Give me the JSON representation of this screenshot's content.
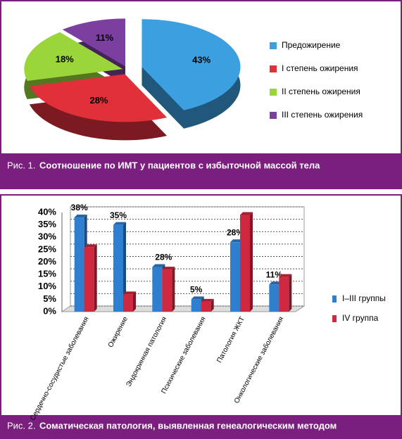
{
  "chart_data": [
    {
      "type": "pie",
      "caption_label": "Рис. 1.",
      "title": "Соотношение по ИМТ у пациентов с избыточной массой тела",
      "categories": [
        "Предожирение",
        "I степень ожирения",
        "II степень ожирения",
        "III степень ожирения"
      ],
      "values": [
        43,
        28,
        18,
        11
      ],
      "value_labels": [
        "43%",
        "28%",
        "18%",
        "11%"
      ],
      "colors": [
        "#3b9fe0",
        "#e0303a",
        "#9ad63a",
        "#7b3fa0"
      ]
    },
    {
      "type": "bar",
      "caption_label": "Рис. 2.",
      "title": "Соматическая патология, выявленная генеалогическим методом",
      "categories": [
        "Сердечно-сосудистые заболевания",
        "Ожирение",
        "Эндокринная патология",
        "Психические заболевания",
        "Патология ЖКТ",
        "Онкологические заболевания"
      ],
      "series": [
        {
          "name": "I–III группы",
          "color": "#2f7fd0",
          "values": [
            38,
            35,
            18,
            5,
            28,
            11
          ],
          "value_labels": [
            "38%",
            "35%",
            null,
            "5%",
            "28%",
            "11%"
          ]
        },
        {
          "name": "IV группа",
          "color": "#d02840",
          "values": [
            26,
            7,
            17,
            4,
            39,
            14
          ]
        }
      ],
      "annotations": [
        "28%"
      ],
      "ylim": [
        0,
        40
      ],
      "yticks": [
        {
          "value": 0,
          "label": "0%"
        },
        {
          "value": 5,
          "label": "5%"
        },
        {
          "value": 10,
          "label": "10%"
        },
        {
          "value": 15,
          "label": "15%"
        },
        {
          "value": 20,
          "label": "20%"
        },
        {
          "value": 25,
          "label": "25%"
        },
        {
          "value": 30,
          "label": "30%"
        },
        {
          "value": 35,
          "label": "35%"
        },
        {
          "value": 40,
          "label": "40%"
        }
      ],
      "grid": true
    }
  ]
}
